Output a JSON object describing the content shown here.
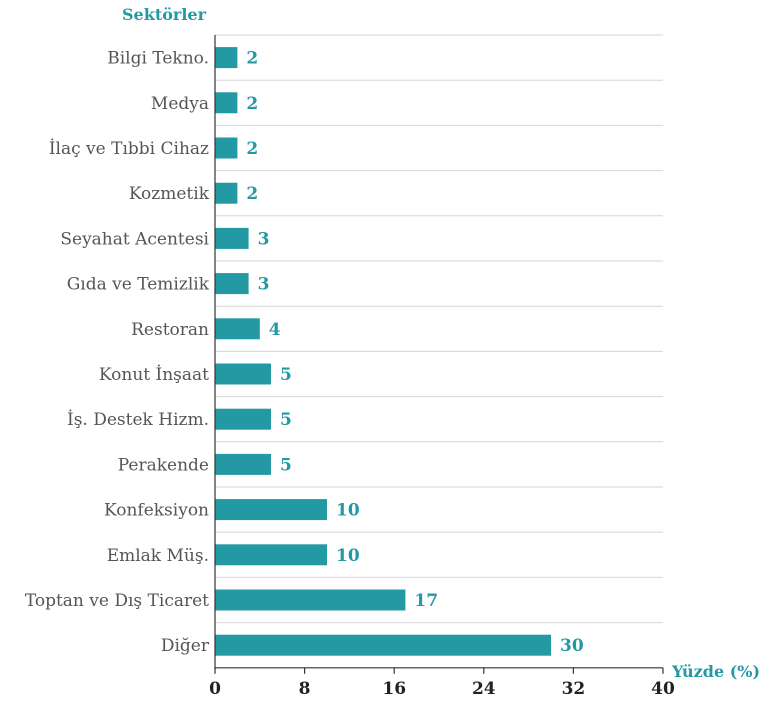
{
  "chart_data": {
    "type": "bar",
    "orientation": "horizontal",
    "categories": [
      "Bilgi Tekno.",
      "Medya",
      "İlaç ve Tıbbi Cihaz",
      "Kozmetik",
      "Seyahat Acentesi",
      "Gıda ve Temizlik",
      "Restoran",
      "Konut İnşaat",
      "İş. Destek Hizm.",
      "Perakende",
      "Konfeksiyon",
      "Emlak Müş.",
      "Toptan ve Dış Ticaret",
      "Diğer"
    ],
    "values": [
      2,
      2,
      2,
      2,
      3,
      3,
      4,
      5,
      5,
      5,
      10,
      10,
      17,
      30
    ],
    "xlim": [
      0,
      40
    ],
    "xticks": [
      "0",
      "8",
      "16",
      "24",
      "32",
      "40"
    ],
    "ylabel": "Sektörler",
    "xlabel": "Yüzde (%)",
    "grid": "horizontal gridlines between categories",
    "legend": "none"
  },
  "colors": {
    "bar": "#2399a3",
    "value_label": "#2399a3",
    "axis_title": "#2399a3",
    "grid": "#d6d6d6",
    "axis": "#333333"
  }
}
